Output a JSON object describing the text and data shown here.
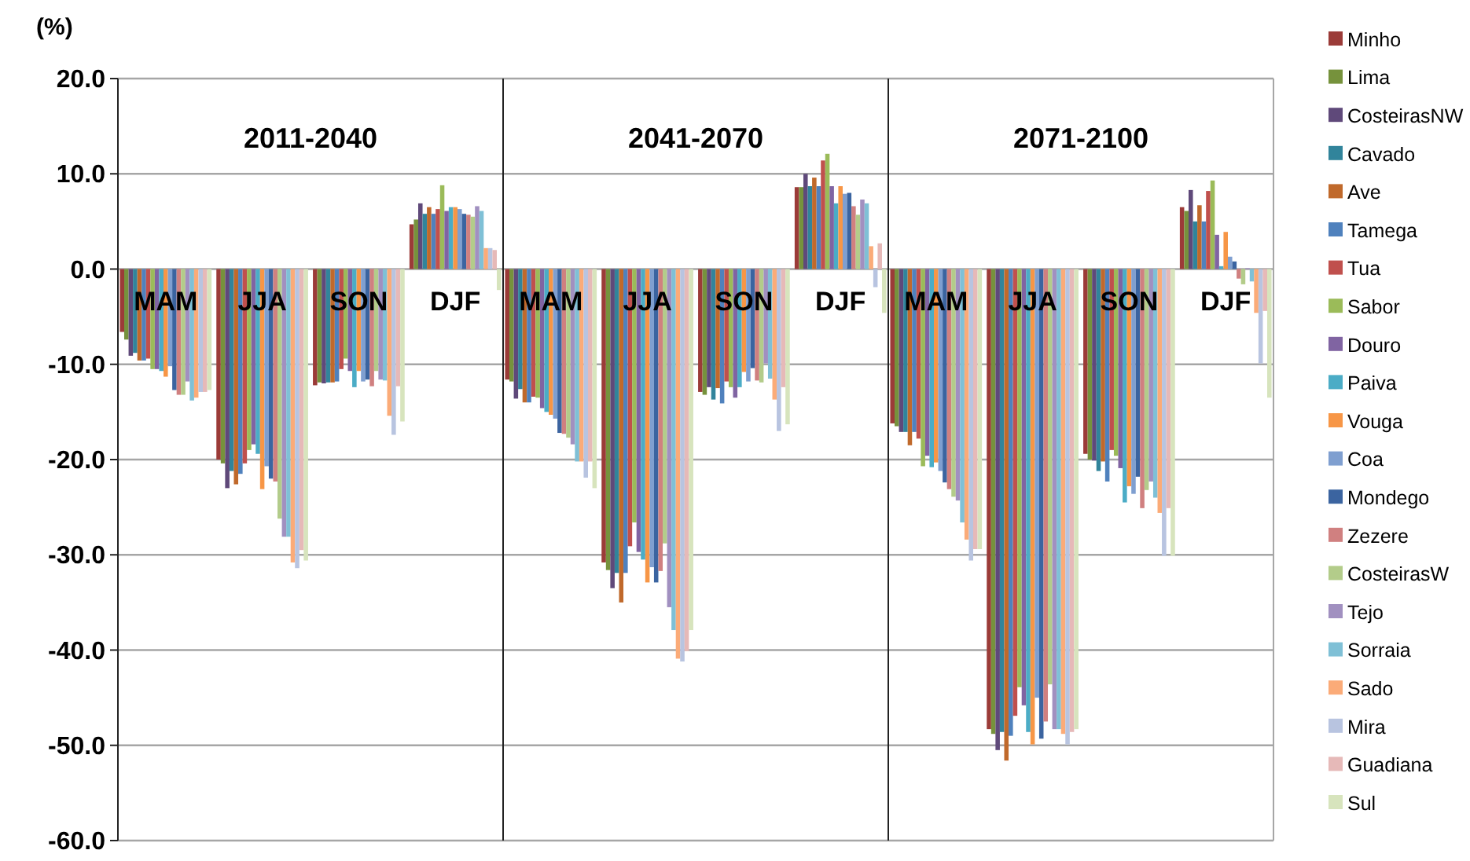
{
  "chart_data": [
    {
      "type": "bar",
      "title": "2011-2040",
      "ylabel": "(%)",
      "categories": [
        "MAM",
        "JJA",
        "SON",
        "DJF"
      ],
      "ylim": [
        -60,
        20
      ],
      "yticks": [
        {
          "value": -60,
          "label": "-60.0"
        },
        {
          "value": -50,
          "label": "-50.0"
        },
        {
          "value": -40,
          "label": "-40.0"
        },
        {
          "value": -30,
          "label": "-30.0"
        },
        {
          "value": -20,
          "label": "-20.0"
        },
        {
          "value": -10,
          "label": "-10.0"
        },
        {
          "value": 0,
          "label": "0.0"
        },
        {
          "value": 10,
          "label": "10.0"
        },
        {
          "value": 20,
          "label": "20.0"
        }
      ],
      "grid": "y",
      "legend": "right",
      "series": [
        {
          "name": "Minho",
          "color": "#9b3b38",
          "values": [
            -6.6,
            -20.0,
            -12.2,
            4.7
          ]
        },
        {
          "name": "Lima",
          "color": "#76923c",
          "values": [
            -7.4,
            -20.4,
            -11.9,
            5.2
          ]
        },
        {
          "name": "CosteirasNW",
          "color": "#5f497a",
          "values": [
            -9.1,
            -23.0,
            -12.0,
            6.9
          ]
        },
        {
          "name": "Cavado",
          "color": "#31849b",
          "values": [
            -8.8,
            -21.2,
            -11.9,
            5.8
          ]
        },
        {
          "name": "Ave",
          "color": "#c0692b",
          "values": [
            -9.6,
            -22.6,
            -11.9,
            6.5
          ]
        },
        {
          "name": "Tamega",
          "color": "#4f81bd",
          "values": [
            -9.6,
            -21.5,
            -11.8,
            5.8
          ]
        },
        {
          "name": "Tua",
          "color": "#c0504d",
          "values": [
            -9.4,
            -20.4,
            -10.5,
            6.3
          ]
        },
        {
          "name": "Sabor",
          "color": "#9bbb59",
          "values": [
            -10.5,
            -19.0,
            -9.4,
            8.8
          ]
        },
        {
          "name": "Douro",
          "color": "#8064a2",
          "values": [
            -10.5,
            -18.4,
            -10.7,
            6.1
          ]
        },
        {
          "name": "Paiva",
          "color": "#4bacc6",
          "values": [
            -10.7,
            -19.4,
            -12.4,
            6.5
          ]
        },
        {
          "name": "Vouga",
          "color": "#f79646",
          "values": [
            -11.3,
            -23.1,
            -10.7,
            6.5
          ]
        },
        {
          "name": "Coa",
          "color": "#7f9fd0",
          "values": [
            -10.2,
            -20.7,
            -11.8,
            6.3
          ]
        },
        {
          "name": "Mondego",
          "color": "#3b64a0",
          "values": [
            -12.7,
            -22.0,
            -11.6,
            5.8
          ]
        },
        {
          "name": "Zezere",
          "color": "#d08080",
          "values": [
            -13.2,
            -22.3,
            -12.3,
            5.7
          ]
        },
        {
          "name": "CosteirasW",
          "color": "#b3cc8a",
          "values": [
            -13.2,
            -26.2,
            -10.7,
            5.5
          ]
        },
        {
          "name": "Tejo",
          "color": "#a190c0",
          "values": [
            -11.8,
            -28.1,
            -11.6,
            6.6
          ]
        },
        {
          "name": "Sorraia",
          "color": "#7fc0d6",
          "values": [
            -13.8,
            -28.1,
            -11.7,
            6.1
          ]
        },
        {
          "name": "Sado",
          "color": "#fbab78",
          "values": [
            -13.5,
            -30.8,
            -15.4,
            2.2
          ]
        },
        {
          "name": "Mira",
          "color": "#b8c4e0",
          "values": [
            -12.9,
            -31.4,
            -17.4,
            2.2
          ]
        },
        {
          "name": "Guadiana",
          "color": "#e6b9b8",
          "values": [
            -12.9,
            -29.5,
            -12.3,
            2.0
          ]
        },
        {
          "name": "Sul",
          "color": "#d7e4bd",
          "values": [
            -12.7,
            -30.6,
            -16.0,
            -2.2
          ]
        }
      ]
    },
    {
      "type": "bar",
      "title": "2041-2070",
      "categories": [
        "MAM",
        "JJA",
        "SON",
        "DJF"
      ],
      "ylim": [
        -60,
        20
      ],
      "yticks": [
        -60,
        -50,
        -40,
        -30,
        -20,
        -10,
        0,
        10,
        20
      ],
      "grid": "y",
      "tick_labels": "x",
      "series": [
        {
          "color": "#9b3b38",
          "values": [
            -11.6,
            -30.8,
            -12.9,
            8.6
          ]
        },
        {
          "color": "#76923c",
          "values": [
            -11.8,
            -31.6,
            -13.2,
            8.6
          ]
        },
        {
          "color": "#5f497a",
          "values": [
            -13.6,
            -33.5,
            -12.4,
            10.0
          ]
        },
        {
          "color": "#31849b",
          "values": [
            -12.6,
            -31.9,
            -13.7,
            8.7
          ]
        },
        {
          "color": "#c0692b",
          "values": [
            -14.0,
            -35.0,
            -12.5,
            9.6
          ]
        },
        {
          "color": "#4f81bd",
          "values": [
            -14.0,
            -31.9,
            -14.1,
            8.7
          ]
        },
        {
          "color": "#c0504d",
          "values": [
            -13.4,
            -29.1,
            -11.8,
            11.4
          ]
        },
        {
          "color": "#9bbb59",
          "values": [
            -13.5,
            -26.6,
            -12.4,
            12.1
          ]
        },
        {
          "color": "#8064a2",
          "values": [
            -14.6,
            -29.7,
            -13.5,
            8.7
          ]
        },
        {
          "color": "#4bacc6",
          "values": [
            -15.0,
            -30.5,
            -12.4,
            6.9
          ]
        },
        {
          "color": "#f79646",
          "values": [
            -15.3,
            -32.9,
            -10.8,
            8.7
          ]
        },
        {
          "color": "#7f9fd0",
          "values": [
            -15.7,
            -31.3,
            -11.8,
            7.9
          ]
        },
        {
          "color": "#3b64a0",
          "values": [
            -17.2,
            -32.9,
            -10.4,
            8.0
          ]
        },
        {
          "color": "#d08080",
          "values": [
            -17.3,
            -31.7,
            -11.7,
            6.6
          ]
        },
        {
          "color": "#b3cc8a",
          "values": [
            -17.7,
            -28.8,
            -11.9,
            5.7
          ]
        },
        {
          "color": "#a190c0",
          "values": [
            -18.4,
            -35.5,
            -9.9,
            7.3
          ]
        },
        {
          "color": "#7fc0d6",
          "values": [
            -20.2,
            -37.9,
            -11.5,
            6.9
          ]
        },
        {
          "color": "#fbab78",
          "values": [
            -20.2,
            -40.9,
            -13.7,
            2.4
          ]
        },
        {
          "color": "#b8c4e0",
          "values": [
            -21.9,
            -41.2,
            -17.0,
            -1.9
          ]
        },
        {
          "color": "#e6b9b8",
          "values": [
            -20.2,
            -40.1,
            -12.4,
            2.7
          ]
        },
        {
          "color": "#d7e4bd",
          "values": [
            -23.0,
            -37.9,
            -16.3,
            -4.6
          ]
        }
      ]
    },
    {
      "type": "bar",
      "title": "2071-2100",
      "categories": [
        "MAM",
        "JJA",
        "SON",
        "DJF"
      ],
      "ylim": [
        -60,
        20
      ],
      "yticks": [
        -60,
        -50,
        -40,
        -30,
        -20,
        -10,
        0,
        10,
        20
      ],
      "grid": "y",
      "tick_labels": "x",
      "series": [
        {
          "color": "#9b3b38",
          "values": [
            -16.2,
            -48.3,
            -19.4,
            6.5
          ]
        },
        {
          "color": "#76923c",
          "values": [
            -16.5,
            -48.8,
            -20.0,
            6.1
          ]
        },
        {
          "color": "#5f497a",
          "values": [
            -17.1,
            -50.5,
            -20.1,
            8.3
          ]
        },
        {
          "color": "#31849b",
          "values": [
            -17.1,
            -48.6,
            -21.2,
            5.0
          ]
        },
        {
          "color": "#c0692b",
          "values": [
            -18.5,
            -51.6,
            -20.2,
            6.7
          ]
        },
        {
          "color": "#4f81bd",
          "values": [
            -17.1,
            -49.0,
            -22.3,
            5.0
          ]
        },
        {
          "color": "#c0504d",
          "values": [
            -17.8,
            -46.9,
            -19.0,
            8.2
          ]
        },
        {
          "color": "#9bbb59",
          "values": [
            -20.7,
            -43.9,
            -19.6,
            9.3
          ]
        },
        {
          "color": "#8064a2",
          "values": [
            -19.6,
            -45.8,
            -20.9,
            3.6
          ]
        },
        {
          "color": "#4bacc6",
          "values": [
            -20.8,
            -48.6,
            -24.5,
            0.3
          ]
        },
        {
          "color": "#f79646",
          "values": [
            -20.3,
            -49.9,
            -22.8,
            3.9
          ]
        },
        {
          "color": "#7f9fd0",
          "values": [
            -21.2,
            -45.0,
            -23.6,
            1.3
          ]
        },
        {
          "color": "#3b64a0",
          "values": [
            -22.4,
            -49.3,
            -21.8,
            0.8
          ]
        },
        {
          "color": "#d08080",
          "values": [
            -23.1,
            -47.5,
            -25.1,
            -1.0
          ]
        },
        {
          "color": "#b3cc8a",
          "values": [
            -23.9,
            -43.6,
            -23.2,
            -1.6
          ]
        },
        {
          "color": "#a190c0",
          "values": [
            -24.3,
            -48.3,
            -22.3,
            0.1
          ]
        },
        {
          "color": "#7fc0d6",
          "values": [
            -26.6,
            -48.3,
            -24.0,
            -1.3
          ]
        },
        {
          "color": "#fbab78",
          "values": [
            -28.4,
            -48.8,
            -25.6,
            -4.6
          ]
        },
        {
          "color": "#b8c4e0",
          "values": [
            -30.6,
            -49.9,
            -30.1,
            -9.9
          ]
        },
        {
          "color": "#e6b9b8",
          "values": [
            -29.4,
            -48.6,
            -25.1,
            -4.4
          ]
        },
        {
          "color": "#d7e4bd",
          "values": [
            -29.4,
            -48.3,
            -30.1,
            -13.5
          ]
        }
      ]
    }
  ]
}
